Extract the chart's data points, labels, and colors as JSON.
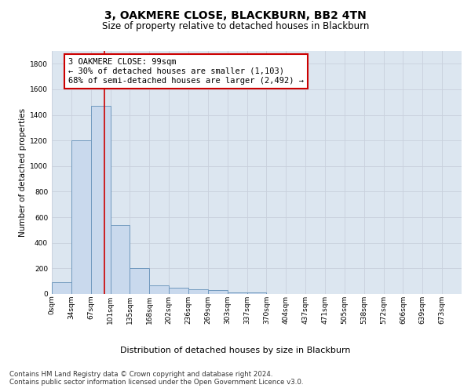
{
  "title": "3, OAKMERE CLOSE, BLACKBURN, BB2 4TN",
  "subtitle": "Size of property relative to detached houses in Blackburn",
  "xlabel": "Distribution of detached houses by size in Blackburn",
  "ylabel": "Number of detached properties",
  "bin_labels": [
    "0sqm",
    "34sqm",
    "67sqm",
    "101sqm",
    "135sqm",
    "168sqm",
    "202sqm",
    "236sqm",
    "269sqm",
    "303sqm",
    "337sqm",
    "370sqm",
    "404sqm",
    "437sqm",
    "471sqm",
    "505sqm",
    "538sqm",
    "572sqm",
    "606sqm",
    "639sqm",
    "673sqm"
  ],
  "bar_heights": [
    90,
    1200,
    1470,
    540,
    205,
    65,
    47,
    37,
    30,
    15,
    10,
    0,
    0,
    0,
    0,
    0,
    0,
    0,
    0,
    0,
    0
  ],
  "bar_color": "#c9d9ed",
  "bar_edgecolor": "#7099be",
  "bar_linewidth": 0.7,
  "vline_x_index": 2.7,
  "vline_color": "#cc0000",
  "vline_linewidth": 1.2,
  "annotation_text": "3 OAKMERE CLOSE: 99sqm\n← 30% of detached houses are smaller (1,103)\n68% of semi-detached houses are larger (2,492) →",
  "ylim": [
    0,
    1900
  ],
  "yticks": [
    0,
    200,
    400,
    600,
    800,
    1000,
    1200,
    1400,
    1600,
    1800
  ],
  "grid_color": "#c8d0dc",
  "bg_color": "#dce6f0",
  "footnote1": "Contains HM Land Registry data © Crown copyright and database right 2024.",
  "footnote2": "Contains public sector information licensed under the Open Government Licence v3.0.",
  "title_fontsize": 10,
  "subtitle_fontsize": 8.5,
  "ylabel_fontsize": 7.5,
  "xlabel_fontsize": 8,
  "tick_fontsize": 6.5,
  "annotation_fontsize": 7.5,
  "footnote_fontsize": 6.2
}
